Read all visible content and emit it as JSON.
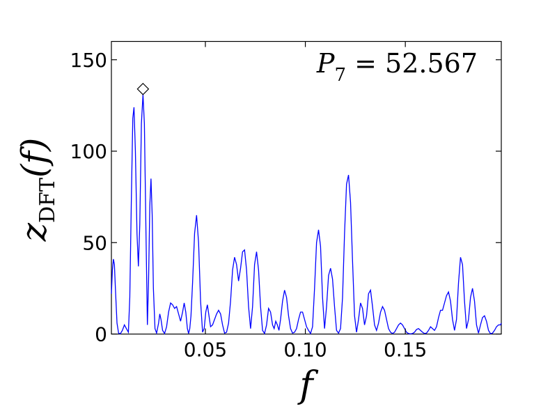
{
  "chart_data": {
    "type": "line",
    "xlabel": "f",
    "ylabel": {
      "base": "z",
      "subscript": "DFT",
      "arg": "(f)"
    },
    "annotation": {
      "base": "P",
      "subscript": "7",
      "text": " = 52.567"
    },
    "xlim": [
      0.003,
      0.198
    ],
    "ylim": [
      0,
      160
    ],
    "xticks": [
      {
        "value": 0.05,
        "label": "0.05"
      },
      {
        "value": 0.1,
        "label": "0.10"
      },
      {
        "value": 0.15,
        "label": "0.15"
      }
    ],
    "yticks": [
      {
        "value": 0,
        "label": "0"
      },
      {
        "value": 50,
        "label": "50"
      },
      {
        "value": 100,
        "label": "100"
      },
      {
        "value": 150,
        "label": "150"
      }
    ],
    "series": [
      {
        "color": "#0000ff",
        "points": [
          [
            0.003,
            22
          ],
          [
            0.0035,
            35
          ],
          [
            0.004,
            41
          ],
          [
            0.0045,
            38
          ],
          [
            0.005,
            25
          ],
          [
            0.0058,
            6
          ],
          [
            0.0066,
            0.5
          ],
          [
            0.0075,
            0.2
          ],
          [
            0.0085,
            2
          ],
          [
            0.0095,
            5
          ],
          [
            0.0105,
            3
          ],
          [
            0.0115,
            1
          ],
          [
            0.0122,
            20
          ],
          [
            0.013,
            75
          ],
          [
            0.0137,
            118
          ],
          [
            0.0143,
            124
          ],
          [
            0.015,
            100
          ],
          [
            0.0158,
            55
          ],
          [
            0.0165,
            37
          ],
          [
            0.0172,
            60
          ],
          [
            0.018,
            115
          ],
          [
            0.0188,
            131
          ],
          [
            0.0195,
            115
          ],
          [
            0.0203,
            55
          ],
          [
            0.021,
            5
          ],
          [
            0.0216,
            30
          ],
          [
            0.0222,
            70
          ],
          [
            0.0228,
            85
          ],
          [
            0.0234,
            65
          ],
          [
            0.024,
            25
          ],
          [
            0.0248,
            3
          ],
          [
            0.0256,
            0.5
          ],
          [
            0.0266,
            6
          ],
          [
            0.0272,
            11
          ],
          [
            0.0278,
            8
          ],
          [
            0.0286,
            2
          ],
          [
            0.0296,
            0.3
          ],
          [
            0.0306,
            4
          ],
          [
            0.0316,
            12
          ],
          [
            0.0326,
            17
          ],
          [
            0.0336,
            16
          ],
          [
            0.0346,
            14
          ],
          [
            0.0356,
            15
          ],
          [
            0.0366,
            11
          ],
          [
            0.0376,
            7
          ],
          [
            0.0386,
            12
          ],
          [
            0.0394,
            17
          ],
          [
            0.0402,
            12
          ],
          [
            0.041,
            3
          ],
          [
            0.0416,
            0.3
          ],
          [
            0.0422,
            3
          ],
          [
            0.0428,
            10
          ],
          [
            0.0436,
            28
          ],
          [
            0.0446,
            55
          ],
          [
            0.0456,
            65
          ],
          [
            0.0466,
            50
          ],
          [
            0.0476,
            18
          ],
          [
            0.0486,
            1
          ],
          [
            0.0494,
            3
          ],
          [
            0.0502,
            12
          ],
          [
            0.051,
            16
          ],
          [
            0.0518,
            10
          ],
          [
            0.0526,
            4
          ],
          [
            0.0536,
            5
          ],
          [
            0.0546,
            8
          ],
          [
            0.0556,
            11
          ],
          [
            0.0566,
            13
          ],
          [
            0.0576,
            11
          ],
          [
            0.0586,
            5
          ],
          [
            0.0596,
            0.5
          ],
          [
            0.0606,
            1
          ],
          [
            0.0616,
            6
          ],
          [
            0.0626,
            18
          ],
          [
            0.0636,
            35
          ],
          [
            0.0646,
            42
          ],
          [
            0.0656,
            38
          ],
          [
            0.0666,
            29
          ],
          [
            0.0676,
            36
          ],
          [
            0.0686,
            45
          ],
          [
            0.0696,
            46
          ],
          [
            0.0706,
            35
          ],
          [
            0.0716,
            15
          ],
          [
            0.0726,
            3
          ],
          [
            0.0736,
            15
          ],
          [
            0.0746,
            38
          ],
          [
            0.0756,
            45
          ],
          [
            0.0766,
            35
          ],
          [
            0.0776,
            15
          ],
          [
            0.0786,
            2
          ],
          [
            0.0796,
            0.3
          ],
          [
            0.0806,
            5
          ],
          [
            0.0816,
            14
          ],
          [
            0.0826,
            12
          ],
          [
            0.0836,
            5
          ],
          [
            0.0844,
            3
          ],
          [
            0.0852,
            7
          ],
          [
            0.086,
            5
          ],
          [
            0.0868,
            2
          ],
          [
            0.0876,
            8
          ],
          [
            0.0886,
            18
          ],
          [
            0.0896,
            24
          ],
          [
            0.0906,
            20
          ],
          [
            0.0916,
            10
          ],
          [
            0.0926,
            3
          ],
          [
            0.0936,
            0.5
          ],
          [
            0.0946,
            1
          ],
          [
            0.0956,
            3
          ],
          [
            0.0966,
            8
          ],
          [
            0.0976,
            12
          ],
          [
            0.0986,
            12
          ],
          [
            0.0996,
            8
          ],
          [
            0.1006,
            4
          ],
          [
            0.1016,
            2
          ],
          [
            0.1026,
            0.3
          ],
          [
            0.1036,
            4
          ],
          [
            0.1046,
            25
          ],
          [
            0.1056,
            50
          ],
          [
            0.1066,
            57
          ],
          [
            0.1076,
            48
          ],
          [
            0.1086,
            20
          ],
          [
            0.1096,
            3
          ],
          [
            0.1106,
            15
          ],
          [
            0.1116,
            32
          ],
          [
            0.1126,
            36
          ],
          [
            0.1136,
            30
          ],
          [
            0.1146,
            15
          ],
          [
            0.1156,
            2
          ],
          [
            0.1166,
            0.5
          ],
          [
            0.1176,
            3
          ],
          [
            0.1186,
            20
          ],
          [
            0.1196,
            55
          ],
          [
            0.1206,
            82
          ],
          [
            0.1216,
            87
          ],
          [
            0.1226,
            72
          ],
          [
            0.1236,
            40
          ],
          [
            0.1246,
            10
          ],
          [
            0.1256,
            1
          ],
          [
            0.1266,
            8
          ],
          [
            0.1276,
            17
          ],
          [
            0.1286,
            14
          ],
          [
            0.1296,
            5
          ],
          [
            0.1306,
            10
          ],
          [
            0.1316,
            22
          ],
          [
            0.1326,
            24
          ],
          [
            0.1336,
            15
          ],
          [
            0.1346,
            5
          ],
          [
            0.1356,
            2
          ],
          [
            0.1366,
            6
          ],
          [
            0.1376,
            12
          ],
          [
            0.1386,
            15
          ],
          [
            0.1396,
            13
          ],
          [
            0.1406,
            8
          ],
          [
            0.1416,
            3
          ],
          [
            0.1426,
            1
          ],
          [
            0.1436,
            0.3
          ],
          [
            0.1446,
            1
          ],
          [
            0.1456,
            3
          ],
          [
            0.1466,
            5
          ],
          [
            0.1476,
            6
          ],
          [
            0.1486,
            5
          ],
          [
            0.1496,
            3
          ],
          [
            0.1506,
            1
          ],
          [
            0.1516,
            0.3
          ],
          [
            0.1526,
            0.1
          ],
          [
            0.1536,
            0.3
          ],
          [
            0.1546,
            1
          ],
          [
            0.1556,
            2.5
          ],
          [
            0.1566,
            3
          ],
          [
            0.1576,
            2
          ],
          [
            0.1586,
            1
          ],
          [
            0.1596,
            0.3
          ],
          [
            0.1606,
            0.5
          ],
          [
            0.1616,
            2
          ],
          [
            0.1626,
            4
          ],
          [
            0.1636,
            3
          ],
          [
            0.1646,
            2
          ],
          [
            0.1656,
            4
          ],
          [
            0.1666,
            9
          ],
          [
            0.1676,
            13
          ],
          [
            0.1686,
            13
          ],
          [
            0.1696,
            17
          ],
          [
            0.1706,
            21
          ],
          [
            0.1716,
            23
          ],
          [
            0.1726,
            18
          ],
          [
            0.1736,
            8
          ],
          [
            0.1746,
            2
          ],
          [
            0.1756,
            8
          ],
          [
            0.1766,
            28
          ],
          [
            0.1776,
            42
          ],
          [
            0.1786,
            38
          ],
          [
            0.1796,
            18
          ],
          [
            0.1806,
            3
          ],
          [
            0.1816,
            8
          ],
          [
            0.1826,
            20
          ],
          [
            0.1836,
            25
          ],
          [
            0.1846,
            18
          ],
          [
            0.1856,
            5
          ],
          [
            0.1866,
            0.5
          ],
          [
            0.1876,
            5
          ],
          [
            0.1886,
            9
          ],
          [
            0.1896,
            10
          ],
          [
            0.1906,
            7
          ],
          [
            0.1916,
            2
          ],
          [
            0.1926,
            0.2
          ],
          [
            0.1936,
            0.5
          ],
          [
            0.1946,
            2
          ],
          [
            0.1956,
            4
          ],
          [
            0.1966,
            5
          ],
          [
            0.1976,
            5
          ],
          [
            0.198,
            6
          ]
        ]
      }
    ],
    "marker": {
      "shape": "diamond",
      "x": 0.0188,
      "y": 134,
      "fill": "#ffffff",
      "stroke": "#000000"
    },
    "grid": false,
    "legend": "none"
  }
}
